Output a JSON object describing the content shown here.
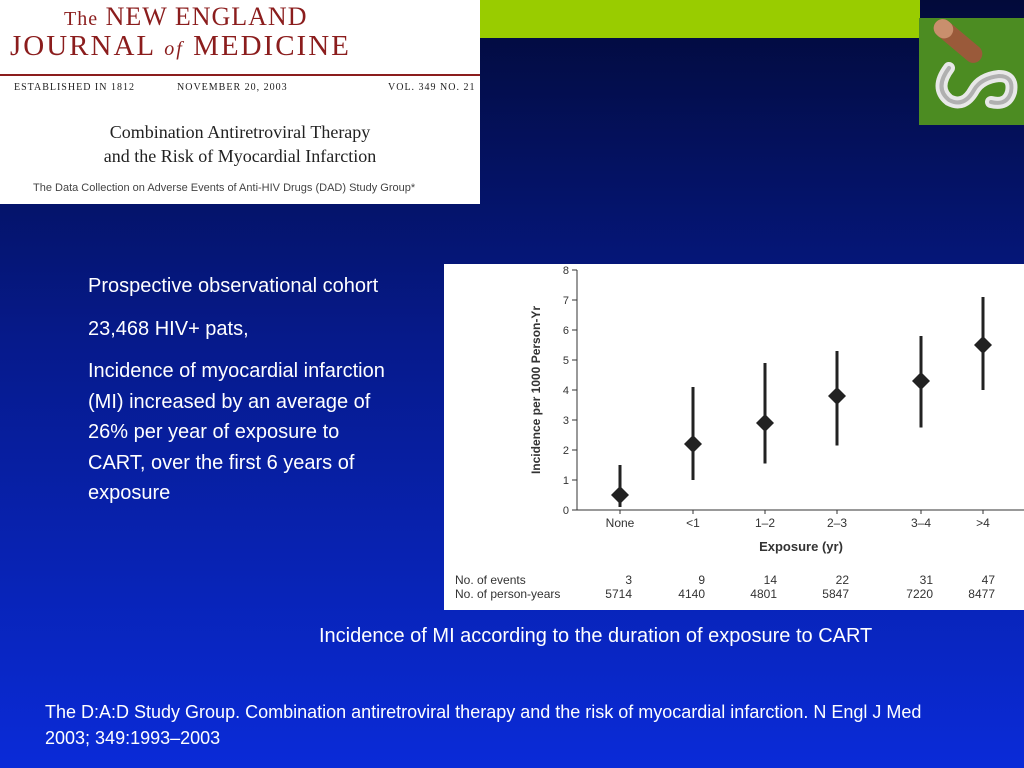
{
  "header": {
    "journal_the": "The",
    "journal_line1": "NEW ENGLAND",
    "journal_line2a": "JOURNAL",
    "journal_of": "of",
    "journal_line2b": "MEDICINE",
    "established": "ESTABLISHED IN 1812",
    "date": "NOVEMBER 20, 2003",
    "volume": "VOL. 349   NO. 21",
    "article_title_1": "Combination Antiretroviral Therapy",
    "article_title_2": "and the Risk of Myocardial Infarction",
    "study_group": "The Data Collection on Adverse Events of Anti-HIV Drugs (DAD) Study Group*"
  },
  "colors": {
    "top_bar": "#99cc00",
    "logo_bg": "#4c8c22",
    "journal_red": "#8b1d1d",
    "marker": "#222222"
  },
  "icons": {
    "logo": "pill-ribbon-icon"
  },
  "bullets": [
    "Prospective observational cohort",
    "23,468 HIV+ pats,",
    "Incidence of myocardial infarction (MI) increased by an average of 26% per year of exposure to CART, over the first 6 years of exposure"
  ],
  "chart_data": {
    "type": "scatter",
    "title": "",
    "xlabel": "Exposure (yr)",
    "ylabel": "Incidence per 1000 Person-Yr",
    "ylim": [
      0,
      8
    ],
    "yticks": [
      "0",
      "1",
      "2",
      "3",
      "4",
      "5",
      "6",
      "7",
      "8"
    ],
    "grid": false,
    "categories": [
      "None",
      "<1",
      "1–2",
      "2–3",
      "3–4",
      ">4"
    ],
    "values": [
      0.5,
      2.2,
      2.9,
      3.8,
      4.3,
      5.5
    ],
    "ci_low": [
      0.1,
      1.0,
      1.55,
      2.15,
      2.75,
      4.0
    ],
    "ci_high": [
      1.5,
      4.1,
      4.9,
      5.3,
      5.8,
      7.1
    ],
    "table": {
      "events_label": "No. of events",
      "person_years_label": "No. of person-years",
      "events": [
        "3",
        "9",
        "14",
        "22",
        "31",
        "47"
      ],
      "person_years": [
        "5714",
        "4140",
        "4801",
        "5847",
        "7220",
        "8477"
      ]
    }
  },
  "caption": "Incidence of MI according to the duration of exposure to CART",
  "citation": "The D:A:D Study Group. Combination antiretroviral therapy and the risk of myocardial infarction. N Engl J Med 2003; 349:1993–2003"
}
